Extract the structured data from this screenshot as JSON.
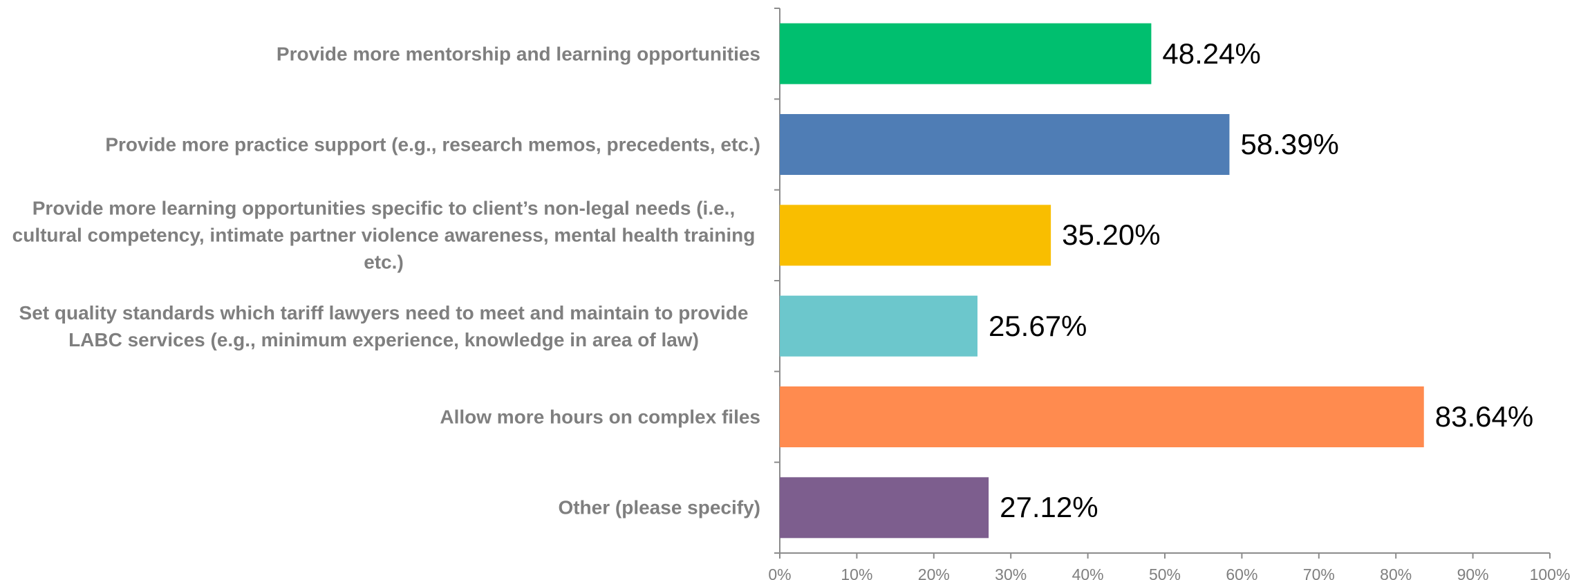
{
  "chart_data": {
    "type": "bar",
    "orientation": "horizontal",
    "categories": [
      "Provide more mentorship and learning opportunities",
      "Provide more practice support (e.g., research memos, precedents, etc.)",
      "Provide more learning opportunities specific to client’s non-legal needs (i.e., cultural competency, intimate partner violence awareness, mental health training etc.)",
      "Set quality standards which tariff lawyers need to meet and maintain to provide LABC services (e.g., minimum experience, knowledge in area of law)",
      "Allow more hours on complex files",
      "Other (please specify)"
    ],
    "values": [
      48.24,
      58.39,
      35.2,
      25.67,
      83.64,
      27.12
    ],
    "value_labels": [
      "48.24%",
      "58.39%",
      "35.20%",
      "25.67%",
      "83.64%",
      "27.12%"
    ],
    "colors": [
      "#00bf6f",
      "#4f7db5",
      "#f9be00",
      "#6cc7cc",
      "#ff8b4f",
      "#7d5e8e"
    ],
    "xlim": [
      0,
      100
    ],
    "xticks": [
      {
        "value": 0,
        "label": "0%"
      },
      {
        "value": 10,
        "label": "10%"
      },
      {
        "value": 20,
        "label": "20%"
      },
      {
        "value": 30,
        "label": "30%"
      },
      {
        "value": 40,
        "label": "40%"
      },
      {
        "value": 50,
        "label": "50%"
      },
      {
        "value": 60,
        "label": "60%"
      },
      {
        "value": 70,
        "label": "70%"
      },
      {
        "value": 80,
        "label": "80%"
      },
      {
        "value": 90,
        "label": "90%"
      },
      {
        "value": 100,
        "label": "100%"
      }
    ],
    "grid": false
  }
}
